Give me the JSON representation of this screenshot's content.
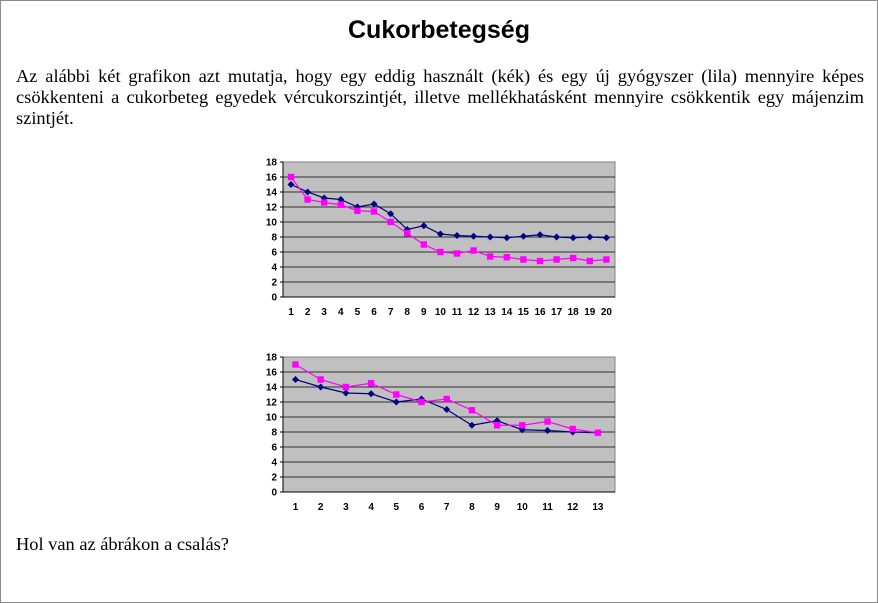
{
  "title": "Cukorbetegség",
  "intro": "Az alábbi két grafikon azt mutatja, hogy egy eddig használt (kék) és egy új gyógyszer (lila) mennyire képes csökkenteni a cukorbeteg egyedek vércukorszintjét, illetve mellékhatásként mennyire csökkentik egy májenzim szintjét.",
  "question": "Hol van az ábrákon a csalás?",
  "colors": {
    "blue": "#000080",
    "pink": "#ff00ff",
    "plot_bg": "#c0c0c0",
    "grid": "#000000"
  },
  "chart_data": [
    {
      "type": "line",
      "categories": [
        "1",
        "2",
        "3",
        "4",
        "5",
        "6",
        "7",
        "8",
        "9",
        "10",
        "11",
        "12",
        "13",
        "14",
        "15",
        "16",
        "17",
        "18",
        "19",
        "20"
      ],
      "ylim": [
        0,
        18
      ],
      "yticks": [
        "0",
        "2",
        "4",
        "6",
        "8",
        "10",
        "12",
        "14",
        "16",
        "18"
      ],
      "grid": true,
      "legend": "none",
      "series": [
        {
          "color": "#000080",
          "marker": "diamond",
          "values": [
            15,
            14,
            13.2,
            13,
            12,
            12.4,
            11.1,
            9,
            9.5,
            8.4,
            8.2,
            8.1,
            8,
            7.9,
            8.1,
            8.3,
            8,
            7.9,
            8,
            7.9
          ]
        },
        {
          "color": "#ff00ff",
          "marker": "square",
          "values": [
            16,
            13,
            12.6,
            12.3,
            11.5,
            11.4,
            10,
            8.5,
            7,
            6,
            5.8,
            6.2,
            5.4,
            5.3,
            5,
            4.8,
            5,
            5.2,
            4.8,
            5
          ]
        }
      ]
    },
    {
      "type": "line",
      "categories": [
        "1",
        "2",
        "3",
        "4",
        "5",
        "6",
        "7",
        "8",
        "9",
        "10",
        "11",
        "12",
        "13"
      ],
      "ylim": [
        0,
        18
      ],
      "yticks": [
        "0",
        "2",
        "4",
        "6",
        "8",
        "10",
        "12",
        "14",
        "16",
        "18"
      ],
      "grid": true,
      "legend": "none",
      "series": [
        {
          "color": "#000080",
          "marker": "diamond",
          "values": [
            15,
            14,
            13.2,
            13.1,
            12,
            12.4,
            11,
            8.9,
            9.5,
            8.3,
            8.2,
            8,
            7.9
          ]
        },
        {
          "color": "#ff00ff",
          "marker": "square",
          "values": [
            17,
            15,
            14,
            14.5,
            13,
            12,
            12.4,
            10.9,
            8.9,
            8.9,
            9.4,
            8.4,
            7.9
          ]
        }
      ]
    }
  ]
}
